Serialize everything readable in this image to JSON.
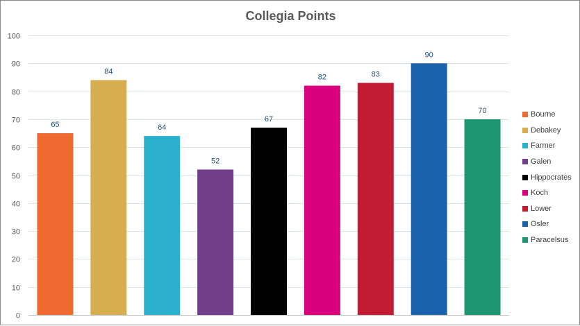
{
  "chart_data": {
    "type": "bar",
    "title": "Collegia Points",
    "xlabel": "",
    "ylabel": "",
    "ylim": [
      0,
      100
    ],
    "yticks": [
      0,
      10,
      20,
      30,
      40,
      50,
      60,
      70,
      80,
      90,
      100
    ],
    "categories": [
      "Bourne",
      "Debakey",
      "Farmer",
      "Galen",
      "Hippocrates",
      "Koch",
      "Lower",
      "Osler",
      "Paracelsus"
    ],
    "values": [
      65,
      84,
      64,
      52,
      67,
      82,
      83,
      90,
      70
    ],
    "colors": [
      "#EE6A31",
      "#D6AE50",
      "#2BB0CE",
      "#713E8B",
      "#000000",
      "#D9007D",
      "#C11C32",
      "#1A63AC",
      "#1F9672"
    ],
    "grid": true,
    "data_labels": true,
    "legend_position": "right"
  }
}
